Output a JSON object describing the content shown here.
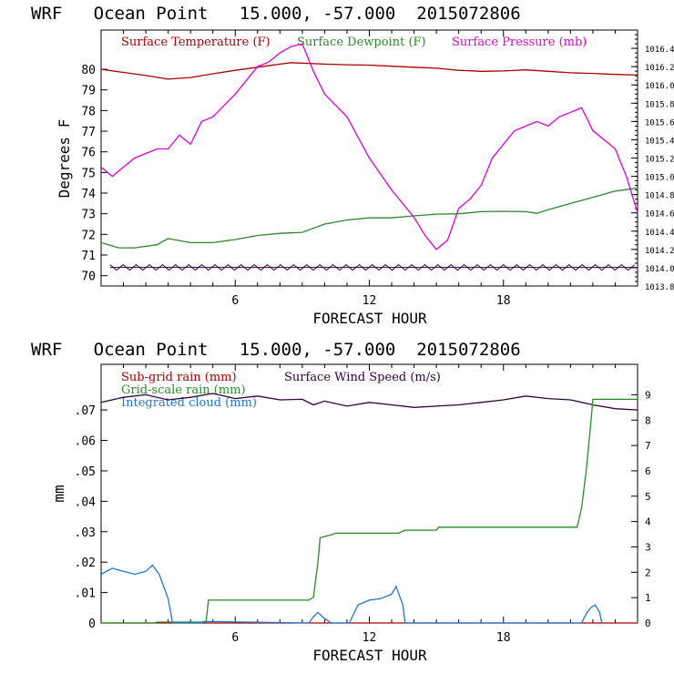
{
  "chart_data": [
    {
      "type": "line",
      "title": "WRF   Ocean Point   15.000, -57.000  2015072806",
      "xlabel": "FORECAST HOUR",
      "ylabel": "Degrees F",
      "xlim": [
        0,
        24
      ],
      "ylim": [
        69.5,
        81.9
      ],
      "y2lim": [
        1013.8,
        1016.6
      ],
      "x_ticks": [
        6,
        12,
        18
      ],
      "y_ticks": [
        70,
        71,
        72,
        73,
        74,
        75,
        76,
        77,
        78,
        79,
        80
      ],
      "y2_ticks": [
        1013.8,
        1014.0,
        1014.2,
        1014.4,
        1014.6,
        1014.8,
        1015.0,
        1015.2,
        1015.4,
        1015.6,
        1015.8,
        1016.0,
        1016.2,
        1016.4
      ],
      "series": [
        {
          "name": "Surface Temperature (F)",
          "color": "#aa0000",
          "axis": "left",
          "x": [
            0,
            1,
            2,
            3,
            4,
            5,
            6,
            7,
            8,
            8.5,
            9,
            10,
            11,
            12,
            13,
            14,
            15,
            16,
            17,
            18,
            19,
            20,
            21,
            22,
            23,
            24
          ],
          "y": [
            80.0,
            79.85,
            79.7,
            79.52,
            79.6,
            79.78,
            79.95,
            80.1,
            80.25,
            80.32,
            80.3,
            80.25,
            80.22,
            80.2,
            80.15,
            80.1,
            80.05,
            79.95,
            79.9,
            79.92,
            79.97,
            79.9,
            79.83,
            79.8,
            79.75,
            79.72
          ]
        },
        {
          "name": "Surface Dewpoint (F)",
          "color": "#2a8a2a",
          "axis": "left",
          "x": [
            0,
            0.8,
            1.5,
            2.5,
            3,
            4,
            5,
            6,
            7,
            8,
            9,
            10,
            11,
            12,
            13,
            14,
            15,
            16,
            17,
            18,
            19,
            19.5,
            20,
            21,
            22,
            23,
            24
          ],
          "y": [
            71.6,
            71.35,
            71.35,
            71.5,
            71.8,
            71.6,
            71.6,
            71.75,
            71.95,
            72.05,
            72.1,
            72.5,
            72.7,
            72.8,
            72.8,
            72.9,
            72.98,
            73.0,
            73.1,
            73.12,
            73.1,
            73.02,
            73.2,
            73.5,
            73.8,
            74.1,
            74.25
          ]
        },
        {
          "name": "Surface Pressure (mb)",
          "color": "#dd00dd",
          "axis": "right",
          "x": [
            0,
            0.5,
            1,
            1.5,
            2,
            2.5,
            3,
            3.5,
            4,
            4.5,
            5,
            6,
            7,
            7.5,
            8,
            8.5,
            9,
            9.5,
            10,
            11,
            12,
            13,
            14,
            14.5,
            15,
            15.5,
            16,
            16.5,
            17,
            17.5,
            18,
            18.5,
            19,
            19.5,
            20,
            20.5,
            21,
            21.5,
            22,
            22.5,
            23,
            23.5,
            24
          ],
          "y": [
            1015.1,
            1015.0,
            1015.1,
            1015.2,
            1015.25,
            1015.3,
            1015.3,
            1015.45,
            1015.35,
            1015.6,
            1015.65,
            1015.9,
            1016.2,
            1016.25,
            1016.35,
            1016.42,
            1016.45,
            1016.15,
            1015.9,
            1015.65,
            1015.2,
            1014.85,
            1014.55,
            1014.35,
            1014.2,
            1014.3,
            1014.65,
            1014.75,
            1014.9,
            1015.2,
            1015.35,
            1015.5,
            1015.55,
            1015.6,
            1015.55,
            1015.65,
            1015.7,
            1015.75,
            1015.5,
            1015.4,
            1015.3,
            1015.0,
            1014.6
          ]
        }
      ],
      "annotations": [
        "zigzag wind band near 70.4 F"
      ]
    },
    {
      "type": "line",
      "title": "WRF   Ocean Point   15.000, -57.000  2015072806",
      "xlabel": "FORECAST HOUR",
      "ylabel": "mm",
      "xlim": [
        0,
        24
      ],
      "ylim": [
        0,
        0.085
      ],
      "y2lim": [
        0,
        10.2
      ],
      "x_ticks": [
        6,
        12,
        18
      ],
      "y_ticks": [
        0,
        0.01,
        0.02,
        0.03,
        0.04,
        0.05,
        0.06,
        0.07
      ],
      "y_tick_labels": [
        "0",
        ".01",
        ".02",
        ".03",
        ".04",
        ".05",
        ".06",
        ".07"
      ],
      "y2_ticks": [
        0,
        1,
        2,
        3,
        4,
        5,
        6,
        7,
        8,
        9
      ],
      "series": [
        {
          "name": "Sub-grid rain (mm)",
          "color": "#aa0000",
          "axis": "left",
          "x": [
            0,
            24
          ],
          "y": [
            0,
            0
          ]
        },
        {
          "name": "Surface Wind Speed (m/s)",
          "color": "#330044",
          "axis": "right",
          "x": [
            0,
            1,
            2,
            3,
            4,
            5,
            6,
            7,
            8,
            9,
            9.5,
            10,
            11,
            12,
            13,
            14,
            15,
            16,
            17,
            18,
            19,
            20,
            21,
            22,
            23,
            24
          ],
          "y": [
            8.7,
            8.9,
            9.0,
            8.8,
            8.9,
            9.05,
            8.85,
            8.95,
            8.8,
            8.82,
            8.6,
            8.75,
            8.55,
            8.7,
            8.6,
            8.5,
            8.55,
            8.6,
            8.7,
            8.8,
            8.95,
            8.85,
            8.8,
            8.6,
            8.45,
            8.4
          ]
        },
        {
          "name": "Grid-scale rain (mm)",
          "color": "#2a8a2a",
          "axis": "left",
          "x": [
            0,
            2.4,
            2.5,
            4.7,
            4.8,
            9.3,
            9.5,
            9.7,
            9.8,
            10.3,
            10.5,
            13.3,
            13.6,
            15.0,
            15.1,
            21.3,
            21.5,
            21.7,
            21.9,
            22.0,
            22.4,
            24
          ],
          "y": [
            0,
            0,
            0.0003,
            0.0003,
            0.0075,
            0.0075,
            0.0085,
            0.02,
            0.028,
            0.029,
            0.0295,
            0.0295,
            0.0305,
            0.0305,
            0.0315,
            0.0315,
            0.038,
            0.05,
            0.065,
            0.0735,
            0.0735,
            0.0735
          ]
        },
        {
          "name": "Integrated cloud (mm)",
          "color": "#1f77d0",
          "axis": "left",
          "x": [
            0,
            0.5,
            1,
            1.5,
            2,
            2.3,
            2.6,
            3.0,
            3.2,
            4.5,
            4.6,
            9.3,
            9.5,
            9.7,
            9.9,
            10.1,
            10.3,
            11.1,
            11.5,
            12,
            12.5,
            13.0,
            13.2,
            13.5,
            13.6,
            21.5,
            21.7,
            21.9,
            22.1,
            22.3,
            22.4
          ],
          "y": [
            0.016,
            0.018,
            0.017,
            0.016,
            0.017,
            0.019,
            0.016,
            0.008,
            0,
            0,
            0.0005,
            0,
            0.002,
            0.0035,
            0.002,
            0.001,
            0,
            0,
            0.006,
            0.0075,
            0.008,
            0.0095,
            0.012,
            0.006,
            0,
            0,
            0.003,
            0.005,
            0.006,
            0.0035,
            0
          ]
        }
      ]
    }
  ]
}
